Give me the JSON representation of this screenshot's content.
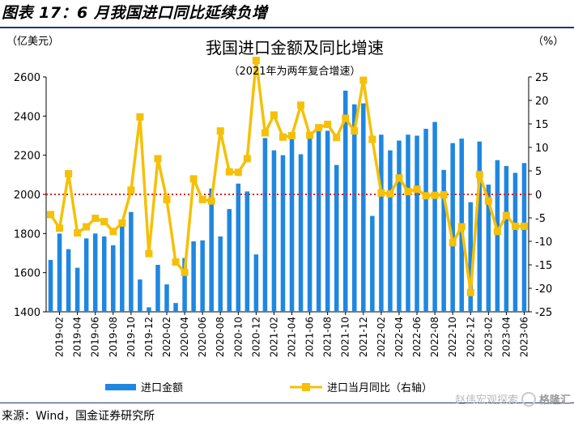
{
  "figure_title": "图表 17：6 月我国进口同比延续负增",
  "source": "来源：Wind，国金证券研究所",
  "watermark": {
    "text": "赵伟宏观探索",
    "brand": "格隆汇"
  },
  "colors": {
    "bar": "#1f87e0",
    "line": "#f5c007",
    "refline": "#e02020",
    "axis": "#000000"
  },
  "chart_data": {
    "type": "bar+line",
    "title": "我国进口金额及同比增速",
    "subtitle": "（2021年为两年复合增速）",
    "left_axis_label": "（亿美元）",
    "right_axis_label": "（%）",
    "left_ylim": [
      1400,
      2600
    ],
    "left_ticks": [
      1400,
      1600,
      1800,
      2000,
      2200,
      2400,
      2600
    ],
    "right_ylim": [
      -25,
      25
    ],
    "right_ticks": [
      25,
      20,
      15,
      10,
      5,
      0,
      -5,
      -10,
      -15,
      -20,
      -25
    ],
    "reference_line_right": 0,
    "x_tick_labels": [
      "2019-02",
      "2019-04",
      "2019-06",
      "2019-08",
      "2019-10",
      "2019-12",
      "2020-02",
      "2020-04",
      "2020-06",
      "2020-08",
      "2020-10",
      "2020-12",
      "2021-02",
      "2021-04",
      "2021-06",
      "2021-08",
      "2021-10",
      "2021-12",
      "2022-02",
      "2022-04",
      "2022-06",
      "2022-08",
      "2022-10",
      "2022-12",
      "2023-02",
      "2023-04",
      "2023-06"
    ],
    "categories": [
      "2019-01",
      "2019-02",
      "2019-03",
      "2019-04",
      "2019-05",
      "2019-06",
      "2019-07",
      "2019-08",
      "2019-09",
      "2019-10",
      "2019-11",
      "2019-12",
      "2020-01",
      "2020-02",
      "2020-03",
      "2020-04",
      "2020-05",
      "2020-06",
      "2020-07",
      "2020-08",
      "2020-09",
      "2020-10",
      "2020-11",
      "2020-12",
      "2021-01",
      "2021-02",
      "2021-03",
      "2021-04",
      "2021-05",
      "2021-06",
      "2021-07",
      "2021-08",
      "2021-09",
      "2021-10",
      "2021-11",
      "2021-12",
      "2022-01",
      "2022-02",
      "2022-03",
      "2022-04",
      "2022-05",
      "2022-06",
      "2022-07",
      "2022-08",
      "2022-09",
      "2022-10",
      "2022-11",
      "2022-12",
      "2023-01",
      "2023-02",
      "2023-03",
      "2023-04",
      "2023-05",
      "2023-06"
    ],
    "series": [
      {
        "name": "进口金额",
        "kind": "bar",
        "axis": "left",
        "values": [
          1665,
          1800,
          1720,
          1625,
          1775,
          1800,
          1785,
          1740,
          1840,
          1910,
          1565,
          1423,
          1640,
          1540,
          1445,
          1675,
          1760,
          1765,
          2030,
          1785,
          1925,
          2055,
          2015,
          1693,
          2288,
          2225,
          2200,
          2305,
          2205,
          2295,
          2325,
          2325,
          2150,
          2530,
          2460,
          2465,
          1890,
          2305,
          2225,
          2275,
          2305,
          2300,
          2335,
          2370,
          2125,
          2262,
          2285,
          1960,
          2270,
          2050,
          2175,
          2145,
          2110,
          2160
        ]
      },
      {
        "name": "进口当月同比（右轴）",
        "kind": "line",
        "axis": "right",
        "values": [
          -4.3,
          -7.2,
          4.4,
          -8.2,
          -6.9,
          -5.1,
          -5.8,
          -7.9,
          -6.1,
          0.9,
          16.5,
          -12.6,
          7.6,
          -1.1,
          -14.4,
          -16.6,
          3.3,
          -1.1,
          -1.4,
          13.5,
          4.8,
          4.7,
          7.6,
          28.5,
          13.1,
          16.9,
          12.2,
          12.5,
          19.0,
          12.6,
          14.2,
          14.9,
          12.1,
          16.2,
          13.5,
          24.3,
          11.7,
          0.3,
          0.1,
          3.5,
          0.6,
          1.1,
          -0.3,
          -0.2,
          -0.1,
          -10.3,
          -6.9,
          -20.9,
          4.2,
          -1.4,
          -7.9,
          -4.5,
          -6.8,
          -6.8
        ]
      }
    ],
    "legend": {
      "position": "bottom",
      "entries": [
        "进口金额",
        "进口当月同比（右轴）"
      ]
    }
  }
}
